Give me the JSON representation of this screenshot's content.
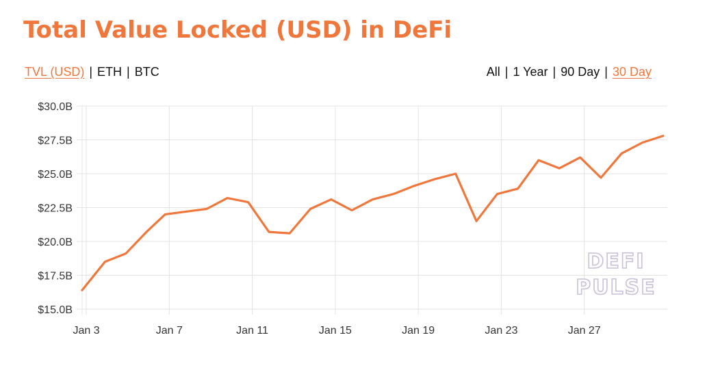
{
  "title": "Total Value Locked (USD) in DeFi",
  "metric_options": [
    {
      "label": "TVL (USD)",
      "active": true
    },
    {
      "label": "ETH",
      "active": false
    },
    {
      "label": "BTC",
      "active": false
    }
  ],
  "range_options": [
    {
      "label": "All",
      "active": false
    },
    {
      "label": "1 Year",
      "active": false
    },
    {
      "label": "90 Day",
      "active": false
    },
    {
      "label": "30 Day",
      "active": true
    }
  ],
  "separator": "|",
  "watermark": {
    "line1": "DEFI",
    "line2": "PULSE"
  },
  "colors": {
    "accent": "#f0773c",
    "grid": "#e3e3e3",
    "text": "#111111"
  },
  "chart_data": {
    "type": "line",
    "title": "Total Value Locked (USD) in DeFi",
    "xlabel": "",
    "ylabel": "",
    "x_tick_labels": [
      "Jan 3",
      "Jan 7",
      "Jan 11",
      "Jan 15",
      "Jan 19",
      "Jan 23",
      "Jan 27"
    ],
    "y_tick_labels": [
      "$15.0B",
      "$17.5B",
      "$20.0B",
      "$22.5B",
      "$25.0B",
      "$27.5B",
      "$30.0B"
    ],
    "y_ticks": [
      15,
      17.5,
      20,
      22.5,
      25,
      27.5,
      30
    ],
    "ylim": [
      15,
      30
    ],
    "xlim": [
      2.8,
      31
    ],
    "x_ticks": [
      3,
      7,
      11,
      15,
      19,
      23,
      27
    ],
    "grid": true,
    "series": [
      {
        "color": "#f0773c",
        "x": [
          2.8,
          3.9,
          4.9,
          5.9,
          6.8,
          7.8,
          8.8,
          9.8,
          10.8,
          11.8,
          12.8,
          13.8,
          14.8,
          15.8,
          16.8,
          17.8,
          18.8,
          19.8,
          20.8,
          21.8,
          22.8,
          23.8,
          24.8,
          25.8,
          26.8,
          27.8,
          28.8,
          29.8,
          30.8
        ],
        "values": [
          16.4,
          18.5,
          19.1,
          20.7,
          22.0,
          22.2,
          22.4,
          23.2,
          22.9,
          20.7,
          20.6,
          22.4,
          23.1,
          22.3,
          23.1,
          23.5,
          24.1,
          24.6,
          25.0,
          21.5,
          23.5,
          23.9,
          26.0,
          25.4,
          26.2,
          24.7,
          26.5,
          27.3,
          27.8
        ]
      }
    ]
  }
}
